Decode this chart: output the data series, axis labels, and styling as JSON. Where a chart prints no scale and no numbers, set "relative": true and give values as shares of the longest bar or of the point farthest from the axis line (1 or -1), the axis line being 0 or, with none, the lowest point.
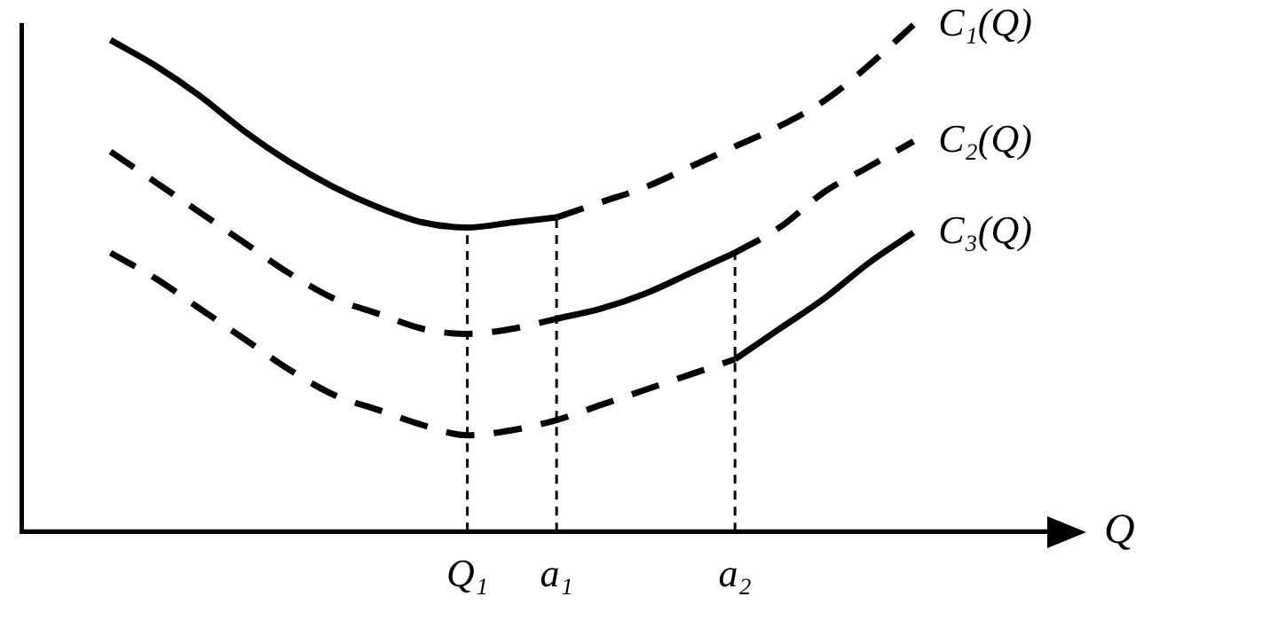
{
  "chart_data": {
    "type": "line",
    "relative": true,
    "xlabel": "Q",
    "legend": false,
    "grid": false,
    "marker": "none",
    "categories": [
      null,
      null,
      null,
      null,
      null,
      null,
      null,
      null,
      null,
      null,
      "Q₁",
      null,
      "a₁",
      null,
      null,
      null,
      "a₂",
      null,
      null,
      null,
      null,
      null,
      null,
      null
    ],
    "series": [
      {
        "color": "#000000",
        "line_style": "solid",
        "values": [
          null,
          null,
          0.97,
          0.92,
          0.86,
          0.79,
          0.73,
          0.68,
          0.64,
          0.61,
          0.6,
          0.61,
          0.62,
          null,
          null,
          null,
          null,
          null,
          null,
          null,
          null,
          null,
          null,
          null
        ]
      },
      {
        "name": "C₁(Q)",
        "color": "#000000",
        "line_style": "dashed",
        "values": [
          null,
          null,
          null,
          null,
          null,
          null,
          null,
          null,
          null,
          null,
          null,
          null,
          0.62,
          0.65,
          0.68,
          0.72,
          0.76,
          0.8,
          0.85,
          0.92,
          1,
          null,
          null,
          null
        ]
      },
      {
        "color": "#000000",
        "line_style": "dashed",
        "values": [
          null,
          null,
          0.75,
          0.69,
          0.63,
          0.57,
          0.51,
          0.46,
          0.43,
          0.4,
          0.39,
          0.4,
          0.42,
          null,
          null,
          null,
          null,
          null,
          null,
          null,
          null,
          null,
          null,
          null
        ]
      },
      {
        "color": "#000000",
        "line_style": "solid",
        "values": [
          null,
          null,
          null,
          null,
          null,
          null,
          null,
          null,
          null,
          null,
          null,
          null,
          0.42,
          0.44,
          0.47,
          0.51,
          0.55,
          null,
          null,
          null,
          null,
          null,
          null,
          null
        ]
      },
      {
        "name": "C₂(Q)",
        "color": "#000000",
        "line_style": "dashed",
        "values": [
          null,
          null,
          null,
          null,
          null,
          null,
          null,
          null,
          null,
          null,
          null,
          null,
          null,
          null,
          null,
          null,
          0.55,
          0.6,
          0.67,
          0.72,
          0.77,
          null,
          null,
          null
        ]
      },
      {
        "color": "#000000",
        "line_style": "dashed",
        "values": [
          null,
          null,
          0.55,
          0.5,
          0.44,
          0.38,
          0.32,
          0.27,
          0.24,
          0.21,
          0.19,
          0.2,
          0.22,
          0.25,
          0.28,
          0.31,
          0.34,
          null,
          null,
          null,
          null,
          null,
          null,
          null
        ]
      },
      {
        "name": "C₃(Q)",
        "color": "#000000",
        "line_style": "solid",
        "values": [
          null,
          null,
          null,
          null,
          null,
          null,
          null,
          null,
          null,
          null,
          null,
          null,
          null,
          null,
          null,
          null,
          0.34,
          0.4,
          0.46,
          0.53,
          0.59,
          null,
          null,
          null
        ]
      },
      {
        "color": "#000000",
        "line_style": "dotted",
        "x": [
          "Q₁",
          "Q₁"
        ],
        "values": [
          0,
          0.6
        ]
      },
      {
        "color": "#000000",
        "line_style": "dotted",
        "x": [
          "a₁",
          "a₁"
        ],
        "values": [
          0,
          0.62
        ]
      },
      {
        "color": "#000000",
        "line_style": "dotted",
        "x": [
          "a₂",
          "a₂"
        ],
        "values": [
          0,
          0.55
        ]
      }
    ]
  }
}
